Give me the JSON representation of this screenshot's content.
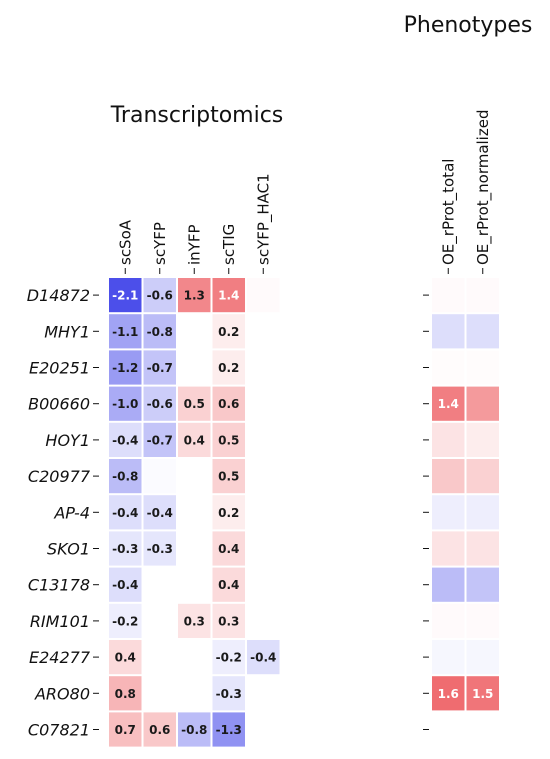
{
  "chart_data": {
    "type": "heatmap",
    "rows": [
      "D14872",
      "MHY1",
      "E20251",
      "B00660",
      "HOY1",
      "C20977",
      "AP-4",
      "SKO1",
      "C13178",
      "RIM101",
      "E24277",
      "ARO80",
      "C07821"
    ],
    "panels": [
      {
        "title": "Transcriptomics",
        "columns": [
          "scSoA",
          "scYFP",
          "inYFP",
          "scTIG",
          "scYFP_HAC1"
        ],
        "values": [
          [
            -2.1,
            -0.6,
            1.3,
            1.4,
            0.05
          ],
          [
            -1.1,
            -0.8,
            0.0,
            0.2,
            0.0
          ],
          [
            -1.2,
            -0.7,
            0.0,
            0.2,
            0.0
          ],
          [
            -1.0,
            -0.6,
            0.5,
            0.6,
            0.0
          ],
          [
            -0.4,
            -0.7,
            0.4,
            0.5,
            0.0
          ],
          [
            -0.8,
            -0.05,
            0.0,
            0.5,
            0.0
          ],
          [
            -0.4,
            -0.4,
            0.0,
            0.2,
            0.0
          ],
          [
            -0.3,
            -0.3,
            0.0,
            0.4,
            0.0
          ],
          [
            -0.4,
            0.0,
            0.0,
            0.4,
            0.0
          ],
          [
            -0.2,
            0.0,
            0.3,
            0.3,
            0.0
          ],
          [
            0.4,
            0.0,
            0.0,
            -0.2,
            -0.4
          ],
          [
            0.8,
            0.0,
            0.0,
            -0.3,
            0.0
          ],
          [
            0.7,
            0.6,
            -0.8,
            -1.3,
            0.0
          ]
        ],
        "labels": [
          [
            "-2.1",
            "-0.6",
            "1.3",
            "1.4",
            ""
          ],
          [
            "-1.1",
            "-0.8",
            "",
            "0.2",
            ""
          ],
          [
            "-1.2",
            "-0.7",
            "",
            "0.2",
            ""
          ],
          [
            "-1.0",
            "-0.6",
            "0.5",
            "0.6",
            ""
          ],
          [
            "-0.4",
            "-0.7",
            "0.4",
            "0.5",
            ""
          ],
          [
            "-0.8",
            "",
            "",
            "0.5",
            ""
          ],
          [
            "-0.4",
            "-0.4",
            "",
            "0.2",
            ""
          ],
          [
            "-0.3",
            "-0.3",
            "",
            "0.4",
            ""
          ],
          [
            "-0.4",
            "",
            "",
            "0.4",
            ""
          ],
          [
            "-0.2",
            "",
            "0.3",
            "0.3",
            ""
          ],
          [
            "0.4",
            "",
            "",
            "-0.2",
            "-0.4"
          ],
          [
            "0.8",
            "",
            "",
            "-0.3",
            ""
          ],
          [
            "0.7",
            "0.6",
            "-0.8",
            "-1.3",
            ""
          ]
        ]
      },
      {
        "title": "Phenotypes",
        "columns": [
          "OE_rProt_total",
          "OE_rProt_normalized"
        ],
        "values": [
          [
            0.05,
            0.05
          ],
          [
            -0.4,
            -0.4
          ],
          [
            0.03,
            0.03
          ],
          [
            1.4,
            1.1
          ],
          [
            0.3,
            0.2
          ],
          [
            0.6,
            0.5
          ],
          [
            -0.2,
            -0.2
          ],
          [
            0.3,
            0.3
          ],
          [
            -0.8,
            -0.7
          ],
          [
            0.05,
            0.05
          ],
          [
            -0.1,
            -0.1
          ],
          [
            1.6,
            1.5
          ],
          [
            0.0,
            0.0
          ]
        ],
        "labels": [
          [
            "",
            ""
          ],
          [
            "",
            ""
          ],
          [
            "",
            ""
          ],
          [
            "1.4",
            ""
          ],
          [
            "",
            ""
          ],
          [
            "",
            ""
          ],
          [
            "",
            ""
          ],
          [
            "",
            ""
          ],
          [
            "",
            ""
          ],
          [
            "",
            ""
          ],
          [
            "",
            ""
          ],
          [
            "1.6",
            "1.5"
          ],
          [
            "",
            ""
          ]
        ]
      }
    ],
    "color_scale": {
      "type": "diverging",
      "negative": "#2a2ee6",
      "zero": "#ffffff",
      "positive": "#e6191f",
      "vmin": -2.5,
      "vmax": 2.5
    },
    "legend": "none",
    "grid": false
  }
}
